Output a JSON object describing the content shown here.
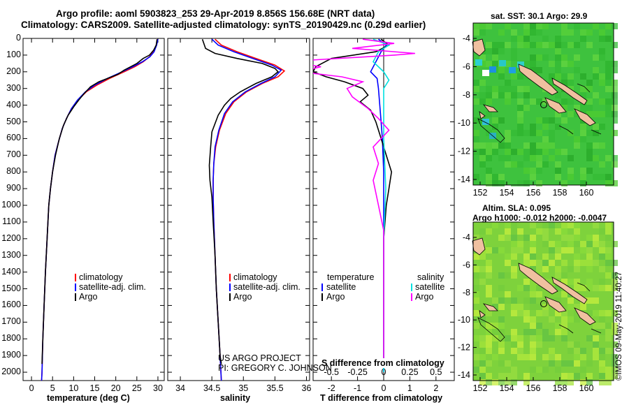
{
  "header": {
    "title_line1": "Argo profile: aoml 5903823_253 29-Apr-2019 8.856S 156.68E (NRT data)",
    "title_line2": "Climatology: CARS2009. Satellite-adjusted climatology: synTS_20190429.nc (0.29d earlier)"
  },
  "colors": {
    "climatology": "#ff0000",
    "satellite": "#0000ff",
    "argo": "#000000",
    "sat_salinity": "#00e0e0",
    "argo_salinity": "#ff00ff",
    "land": "#f0c0a0"
  },
  "depth_axis": {
    "ticks": [
      "0",
      "100",
      "200",
      "300",
      "400",
      "500",
      "600",
      "700",
      "800",
      "900",
      "1000",
      "1100",
      "1200",
      "1300",
      "1400",
      "1500",
      "1600",
      "1700",
      "1800",
      "1900",
      "2000"
    ],
    "ylim": [
      0,
      2050
    ]
  },
  "chart_data": [
    {
      "type": "line",
      "xlabel": "temperature (deg C)",
      "xticks": [
        "0",
        "5",
        "10",
        "15",
        "20",
        "25",
        "30"
      ],
      "xlim": [
        -2,
        31.5
      ],
      "legend": [
        "climatology",
        "satellite-adj. clim.",
        "Argo"
      ],
      "series": [
        {
          "name": "climatology",
          "points": [
            [
              29.9,
              5
            ],
            [
              29.6,
              40
            ],
            [
              29.0,
              80
            ],
            [
              28.0,
              110
            ],
            [
              26.5,
              140
            ],
            [
              24.5,
              170
            ],
            [
              22.0,
              200
            ],
            [
              18.5,
              240
            ],
            [
              15.5,
              280
            ],
            [
              13.0,
              320
            ],
            [
              11.0,
              370
            ],
            [
              9.5,
              420
            ],
            [
              8.3,
              480
            ],
            [
              7.3,
              540
            ],
            [
              6.4,
              620
            ],
            [
              5.6,
              700
            ],
            [
              5.0,
              800
            ],
            [
              4.5,
              900
            ],
            [
              4.1,
              1000
            ],
            [
              3.7,
              1200
            ],
            [
              3.3,
              1400
            ],
            [
              3.0,
              1600
            ],
            [
              2.7,
              1800
            ],
            [
              2.5,
              2000
            ],
            [
              2.4,
              2050
            ]
          ]
        },
        {
          "name": "satellite-adj. clim.",
          "points": [
            [
              30.0,
              5
            ],
            [
              29.7,
              40
            ],
            [
              29.1,
              80
            ],
            [
              28.1,
              110
            ],
            [
              26.3,
              140
            ],
            [
              24.0,
              170
            ],
            [
              21.5,
              200
            ],
            [
              18.0,
              240
            ],
            [
              15.0,
              280
            ],
            [
              12.8,
              320
            ],
            [
              10.9,
              370
            ],
            [
              9.5,
              420
            ],
            [
              8.3,
              480
            ],
            [
              7.3,
              540
            ],
            [
              6.4,
              620
            ],
            [
              5.6,
              700
            ],
            [
              5.0,
              800
            ],
            [
              4.5,
              900
            ],
            [
              4.1,
              1000
            ],
            [
              3.7,
              1200
            ],
            [
              3.3,
              1400
            ],
            [
              3.0,
              1600
            ],
            [
              2.7,
              1800
            ],
            [
              2.5,
              2000
            ],
            [
              2.4,
              2050
            ]
          ]
        },
        {
          "name": "Argo",
          "points": [
            [
              29.8,
              5
            ],
            [
              29.6,
              40
            ],
            [
              29.0,
              70
            ],
            [
              28.0,
              100
            ],
            [
              26.5,
              120
            ],
            [
              25.0,
              150
            ],
            [
              22.0,
              190
            ],
            [
              20.5,
              215
            ],
            [
              18.5,
              235
            ],
            [
              16.0,
              260
            ],
            [
              14.0,
              290
            ],
            [
              12.5,
              330
            ],
            [
              11.2,
              370
            ],
            [
              10.0,
              410
            ],
            [
              8.7,
              460
            ],
            [
              7.6,
              520
            ],
            [
              6.6,
              600
            ],
            [
              5.7,
              700
            ],
            [
              5.0,
              800
            ],
            [
              4.5,
              900
            ],
            [
              4.1,
              1000
            ],
            [
              3.7,
              1200
            ],
            [
              3.3,
              1400
            ],
            [
              3.0,
              1600
            ],
            [
              2.7,
              1800
            ],
            [
              2.5,
              1950
            ]
          ]
        }
      ]
    },
    {
      "type": "line",
      "xlabel": "salinity",
      "xticks": [
        "34",
        "34.5",
        "35",
        "35.5",
        "36"
      ],
      "xlim": [
        33.8,
        36.05
      ],
      "legend": [
        "climatology",
        "satellite-adj. clim.",
        "Argo"
      ],
      "series": [
        {
          "name": "climatology",
          "points": [
            [
              34.55,
              5
            ],
            [
              34.65,
              40
            ],
            [
              34.9,
              80
            ],
            [
              35.2,
              120
            ],
            [
              35.5,
              160
            ],
            [
              35.65,
              195
            ],
            [
              35.55,
              230
            ],
            [
              35.3,
              270
            ],
            [
              35.05,
              320
            ],
            [
              34.85,
              380
            ],
            [
              34.72,
              450
            ],
            [
              34.62,
              550
            ],
            [
              34.56,
              650
            ],
            [
              34.53,
              750
            ],
            [
              34.52,
              850
            ],
            [
              34.52,
              950
            ],
            [
              34.53,
              1100
            ],
            [
              34.55,
              1300
            ],
            [
              34.57,
              1500
            ],
            [
              34.6,
              1700
            ],
            [
              34.63,
              1900
            ],
            [
              34.65,
              2050
            ]
          ]
        },
        {
          "name": "satellite-adj. clim.",
          "points": [
            [
              34.5,
              5
            ],
            [
              34.6,
              40
            ],
            [
              34.85,
              80
            ],
            [
              35.15,
              120
            ],
            [
              35.45,
              160
            ],
            [
              35.6,
              190
            ],
            [
              35.5,
              230
            ],
            [
              35.28,
              270
            ],
            [
              35.03,
              320
            ],
            [
              34.83,
              380
            ],
            [
              34.7,
              450
            ],
            [
              34.61,
              550
            ],
            [
              34.55,
              650
            ],
            [
              34.53,
              750
            ],
            [
              34.52,
              850
            ],
            [
              34.52,
              950
            ],
            [
              34.53,
              1100
            ],
            [
              34.55,
              1300
            ],
            [
              34.57,
              1500
            ],
            [
              34.6,
              1700
            ],
            [
              34.63,
              1900
            ],
            [
              34.65,
              2050
            ]
          ]
        },
        {
          "name": "Argo",
          "points": [
            [
              34.35,
              5
            ],
            [
              34.4,
              60
            ],
            [
              34.55,
              90
            ],
            [
              34.9,
              120
            ],
            [
              35.3,
              150
            ],
            [
              35.5,
              180
            ],
            [
              35.55,
              200
            ],
            [
              35.45,
              230
            ],
            [
              35.2,
              270
            ],
            [
              34.95,
              320
            ],
            [
              34.8,
              360
            ],
            [
              34.7,
              400
            ],
            [
              34.6,
              460
            ],
            [
              34.5,
              560
            ],
            [
              34.48,
              650
            ],
            [
              34.46,
              760
            ],
            [
              34.47,
              850
            ],
            [
              34.5,
              950
            ],
            [
              34.52,
              1100
            ],
            [
              34.55,
              1300
            ],
            [
              34.57,
              1500
            ],
            [
              34.6,
              1700
            ],
            [
              34.63,
              1900
            ],
            [
              34.65,
              1950
            ]
          ]
        }
      ]
    },
    {
      "type": "line",
      "xlabel": "T difference from climatology",
      "xlabel2": "S difference from climatology",
      "xticks": [
        "-2",
        "-1",
        "0",
        "1",
        "2"
      ],
      "xticks2": [
        "-0.5",
        "-0.25",
        "0",
        "0.25",
        "0.5"
      ],
      "xlim": [
        -2.7,
        2.7
      ],
      "legend_left_title": "temperature",
      "legend_right_title": "salinity",
      "legend_left": [
        "satellite",
        "Argo"
      ],
      "legend_right": [
        "satellite",
        "Argo"
      ],
      "series": [
        {
          "name": "temperature satellite",
          "points": [
            [
              -0.2,
              5
            ],
            [
              0.1,
              40
            ],
            [
              -0.1,
              80
            ],
            [
              -0.3,
              140
            ],
            [
              -0.5,
              200
            ],
            [
              -0.25,
              240
            ],
            [
              -0.2,
              300
            ],
            [
              -0.15,
              400
            ],
            [
              -0.1,
              500
            ],
            [
              -0.05,
              600
            ],
            [
              0,
              800
            ],
            [
              0,
              1000
            ],
            [
              0,
              1500
            ],
            [
              0,
              2000
            ]
          ]
        },
        {
          "name": "temperature Argo",
          "points": [
            [
              -0.1,
              5
            ],
            [
              0.2,
              40
            ],
            [
              -0.3,
              80
            ],
            [
              -2.0,
              120
            ],
            [
              -2.6,
              170
            ],
            [
              -2.7,
              200
            ],
            [
              -2.2,
              230
            ],
            [
              -1.5,
              260
            ],
            [
              -0.8,
              300
            ],
            [
              -0.6,
              340
            ],
            [
              -0.9,
              380
            ],
            [
              -0.5,
              430
            ],
            [
              -0.3,
              500
            ],
            [
              -0.1,
              600
            ],
            [
              0.1,
              700
            ],
            [
              0.3,
              800
            ],
            [
              0.2,
              900
            ],
            [
              0.1,
              1000
            ],
            [
              0,
              1200
            ],
            [
              0,
              1500
            ],
            [
              0,
              1800
            ],
            [
              0,
              1950
            ]
          ]
        },
        {
          "name": "salinity satellite",
          "points": [
            [
              -0.1,
              5
            ],
            [
              0.05,
              40
            ],
            [
              -0.05,
              80
            ],
            [
              -0.1,
              140
            ],
            [
              0,
              200
            ],
            [
              0.05,
              250
            ],
            [
              0,
              300
            ],
            [
              0,
              400
            ],
            [
              0,
              600
            ],
            [
              0.02,
              900
            ],
            [
              0,
              1200
            ],
            [
              0,
              1500
            ],
            [
              0,
              1800
            ],
            [
              0,
              2000
            ]
          ]
        },
        {
          "name": "salinity Argo",
          "points": [
            [
              -0.2,
              5
            ],
            [
              0.1,
              30
            ],
            [
              -0.3,
              60
            ],
            [
              0.3,
              90
            ],
            [
              0.1,
              100
            ],
            [
              -0.7,
              130
            ],
            [
              -0.8,
              150
            ],
            [
              -0.6,
              170
            ],
            [
              -0.8,
              200
            ],
            [
              -0.4,
              230
            ],
            [
              -0.2,
              260
            ],
            [
              -0.35,
              300
            ],
            [
              -0.3,
              350
            ],
            [
              -0.15,
              420
            ],
            [
              -0.05,
              480
            ],
            [
              0.05,
              550
            ],
            [
              -0.1,
              650
            ],
            [
              -0.05,
              750
            ],
            [
              -0.1,
              850
            ],
            [
              -0.05,
              1000
            ],
            [
              0,
              1150
            ],
            [
              0,
              1400
            ],
            [
              0,
              1700
            ],
            [
              0,
              1950
            ]
          ]
        }
      ]
    }
  ],
  "credits": {
    "line1": "US ARGO PROJECT",
    "line2": "PI: GREGORY C. JOHNSON"
  },
  "map_top": {
    "title": "sat. SST: 30.1 Argo: 29.9",
    "yticks": [
      "-4",
      "-6",
      "-8",
      "-10",
      "-12",
      "-14"
    ],
    "xticks": [
      "152",
      "154",
      "156",
      "158",
      "160"
    ]
  },
  "map_bottom": {
    "title1": "Altim. SLA: 0.095",
    "title2": "Argo h1000: -0.012 h2000: -0.0047",
    "yticks": [
      "-4",
      "-6",
      "-8",
      "-10",
      "-12",
      "-14"
    ],
    "xticks": [
      "152",
      "154",
      "156",
      "158",
      "160"
    ]
  },
  "watermark": "©IMOS 09-May-2019 11:40:27"
}
